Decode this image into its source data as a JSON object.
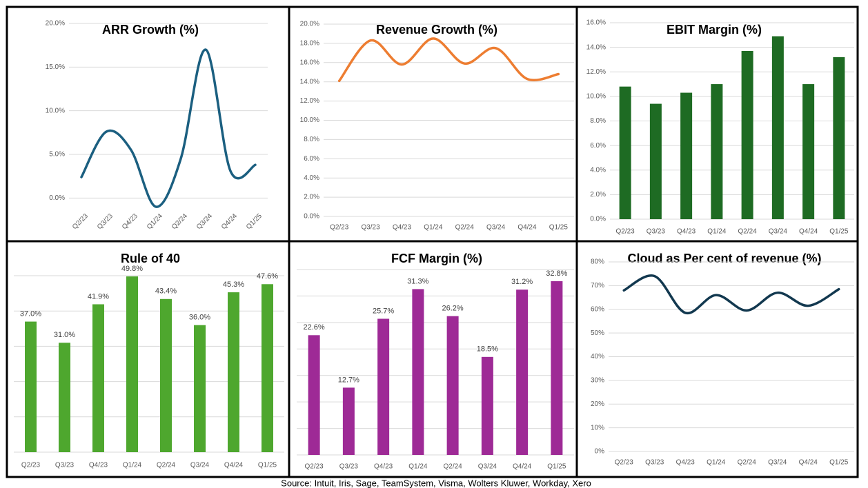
{
  "chart_data": [
    {
      "type": "line",
      "title": "ARR Growth (%)",
      "categories": [
        "Q2/23",
        "Q3/23",
        "Q4/23",
        "Q1/24",
        "Q2/24",
        "Q3/24",
        "Q4/24",
        "Q1/25"
      ],
      "values": [
        2.4,
        7.6,
        5.5,
        -1.0,
        4.5,
        17.0,
        3.1,
        3.8
      ],
      "color": "#1b5f80",
      "ylim": [
        -2.5,
        20
      ],
      "yticks": [
        {
          "value": 0,
          "label": "0.0%"
        },
        {
          "value": 5,
          "label": "5.0%"
        },
        {
          "value": 10,
          "label": "10.0%"
        },
        {
          "value": 15,
          "label": "15.0%"
        },
        {
          "value": 20,
          "label": "20.0%"
        }
      ],
      "grid": true
    },
    {
      "type": "line",
      "title": "Revenue Growth (%)",
      "categories": [
        "Q2/23",
        "Q3/23",
        "Q4/23",
        "Q1/24",
        "Q2/24",
        "Q3/24",
        "Q4/24",
        "Q1/25"
      ],
      "values": [
        14.1,
        18.3,
        15.8,
        18.5,
        15.9,
        17.5,
        14.3,
        14.8
      ],
      "color": "#ed7d31",
      "ylim": [
        0,
        20
      ],
      "yticks": [
        {
          "value": 0,
          "label": "0.0%"
        },
        {
          "value": 2,
          "label": "2.0%"
        },
        {
          "value": 4,
          "label": "4.0%"
        },
        {
          "value": 6,
          "label": "6.0%"
        },
        {
          "value": 8,
          "label": "8.0%"
        },
        {
          "value": 10,
          "label": "10.0%"
        },
        {
          "value": 12,
          "label": "12.0%"
        },
        {
          "value": 14,
          "label": "14.0%"
        },
        {
          "value": 16,
          "label": "16.0%"
        },
        {
          "value": 18,
          "label": "18.0%"
        },
        {
          "value": 20,
          "label": "20.0%"
        }
      ],
      "grid": true
    },
    {
      "type": "bar",
      "title": "EBIT Margin (%)",
      "categories": [
        "Q2/23",
        "Q3/23",
        "Q4/23",
        "Q1/24",
        "Q2/24",
        "Q3/24",
        "Q4/24",
        "Q1/25"
      ],
      "values": [
        10.8,
        9.4,
        10.3,
        11.0,
        13.7,
        14.9,
        11.0,
        13.2
      ],
      "color": "#1e6b23",
      "ylim": [
        0,
        16
      ],
      "yticks": [
        {
          "value": 0,
          "label": "0.0%"
        },
        {
          "value": 2,
          "label": "2.0%"
        },
        {
          "value": 4,
          "label": "4.0%"
        },
        {
          "value": 6,
          "label": "6.0%"
        },
        {
          "value": 8,
          "label": "8.0%"
        },
        {
          "value": 10,
          "label": "10.0%"
        },
        {
          "value": 12,
          "label": "12.0%"
        },
        {
          "value": 14,
          "label": "14.0%"
        },
        {
          "value": 16,
          "label": "16.0%"
        }
      ],
      "grid": true
    },
    {
      "type": "bar",
      "title": "Rule of 40",
      "categories": [
        "Q2/23",
        "Q3/23",
        "Q4/23",
        "Q1/24",
        "Q2/24",
        "Q3/24",
        "Q4/24",
        "Q1/25"
      ],
      "values": [
        37.0,
        31.0,
        41.9,
        49.8,
        43.4,
        36.0,
        45.3,
        47.6
      ],
      "value_labels": [
        "37.0%",
        "31.0%",
        "41.9%",
        "49.8%",
        "43.4%",
        "36.0%",
        "45.3%",
        "47.6%"
      ],
      "color": "#4ea72e",
      "ylim": [
        0,
        50
      ],
      "yticks": [
        0,
        10,
        20,
        30,
        40,
        50
      ],
      "y_axis_labels": false,
      "grid": true
    },
    {
      "type": "bar",
      "title": "FCF Margin (%)",
      "categories": [
        "Q2/23",
        "Q3/23",
        "Q4/23",
        "Q1/24",
        "Q2/24",
        "Q3/24",
        "Q4/24",
        "Q1/25"
      ],
      "values": [
        22.6,
        12.7,
        25.7,
        31.3,
        26.2,
        18.5,
        31.2,
        32.8
      ],
      "value_labels": [
        "22.6%",
        "12.7%",
        "25.7%",
        "31.3%",
        "26.2%",
        "18.5%",
        "31.2%",
        "32.8%"
      ],
      "color": "#9e2a96",
      "ylim": [
        0,
        35
      ],
      "yticks": [
        0,
        5,
        10,
        15,
        20,
        25,
        30,
        35
      ],
      "y_axis_labels": false,
      "grid": true
    },
    {
      "type": "line",
      "title": "Cloud as Per cent of revenue (%)",
      "categories": [
        "Q2/23",
        "Q3/23",
        "Q4/23",
        "Q1/24",
        "Q2/24",
        "Q3/24",
        "Q4/24",
        "Q1/25"
      ],
      "values": [
        68,
        74,
        58.5,
        66,
        59.5,
        67,
        61.5,
        68.5
      ],
      "color": "#12384f",
      "ylim": [
        0,
        80
      ],
      "yticks": [
        {
          "value": 0,
          "label": "0%"
        },
        {
          "value": 10,
          "label": "10%"
        },
        {
          "value": 20,
          "label": "20%"
        },
        {
          "value": 30,
          "label": "30%"
        },
        {
          "value": 40,
          "label": "40%"
        },
        {
          "value": 50,
          "label": "50%"
        },
        {
          "value": 60,
          "label": "60%"
        },
        {
          "value": 70,
          "label": "70%"
        },
        {
          "value": 80,
          "label": "80%"
        }
      ],
      "grid": true
    }
  ],
  "source": "Source: Intuit, Iris, Sage, TeamSystem, Visma, Wolters Kluwer, Workday, Xero"
}
